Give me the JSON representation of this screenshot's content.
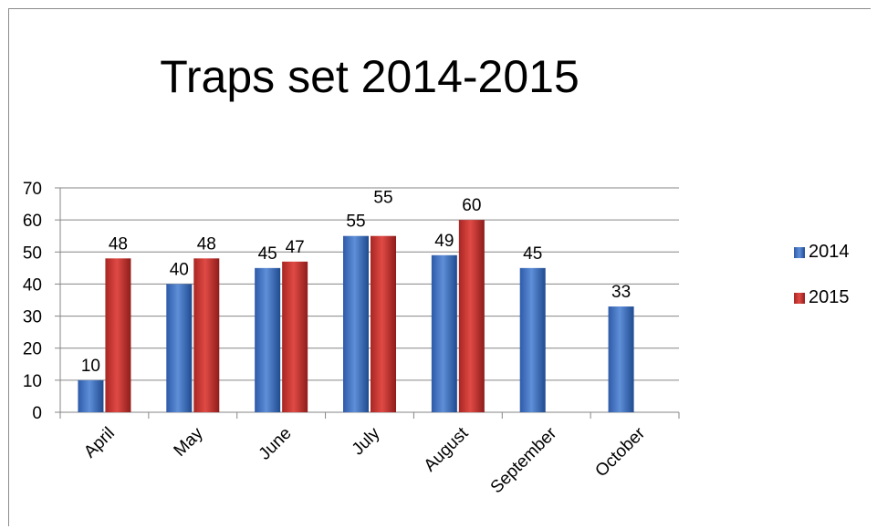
{
  "chart_data": {
    "type": "bar",
    "title": "Traps set 2014-2015",
    "categories": [
      "April",
      "May",
      "June",
      "July",
      "August",
      "September",
      "October"
    ],
    "series": [
      {
        "name": "2014",
        "values": [
          10,
          40,
          45,
          55,
          49,
          45,
          33
        ],
        "color": "#4472c4"
      },
      {
        "name": "2015",
        "values": [
          48,
          48,
          47,
          55,
          60,
          null,
          null
        ],
        "color": "#c0312f"
      }
    ],
    "ylim": [
      0,
      70
    ],
    "yticks": [
      0,
      10,
      20,
      30,
      40,
      50,
      60,
      70
    ],
    "grid": true,
    "legend_position": "right",
    "data_labels": true
  }
}
